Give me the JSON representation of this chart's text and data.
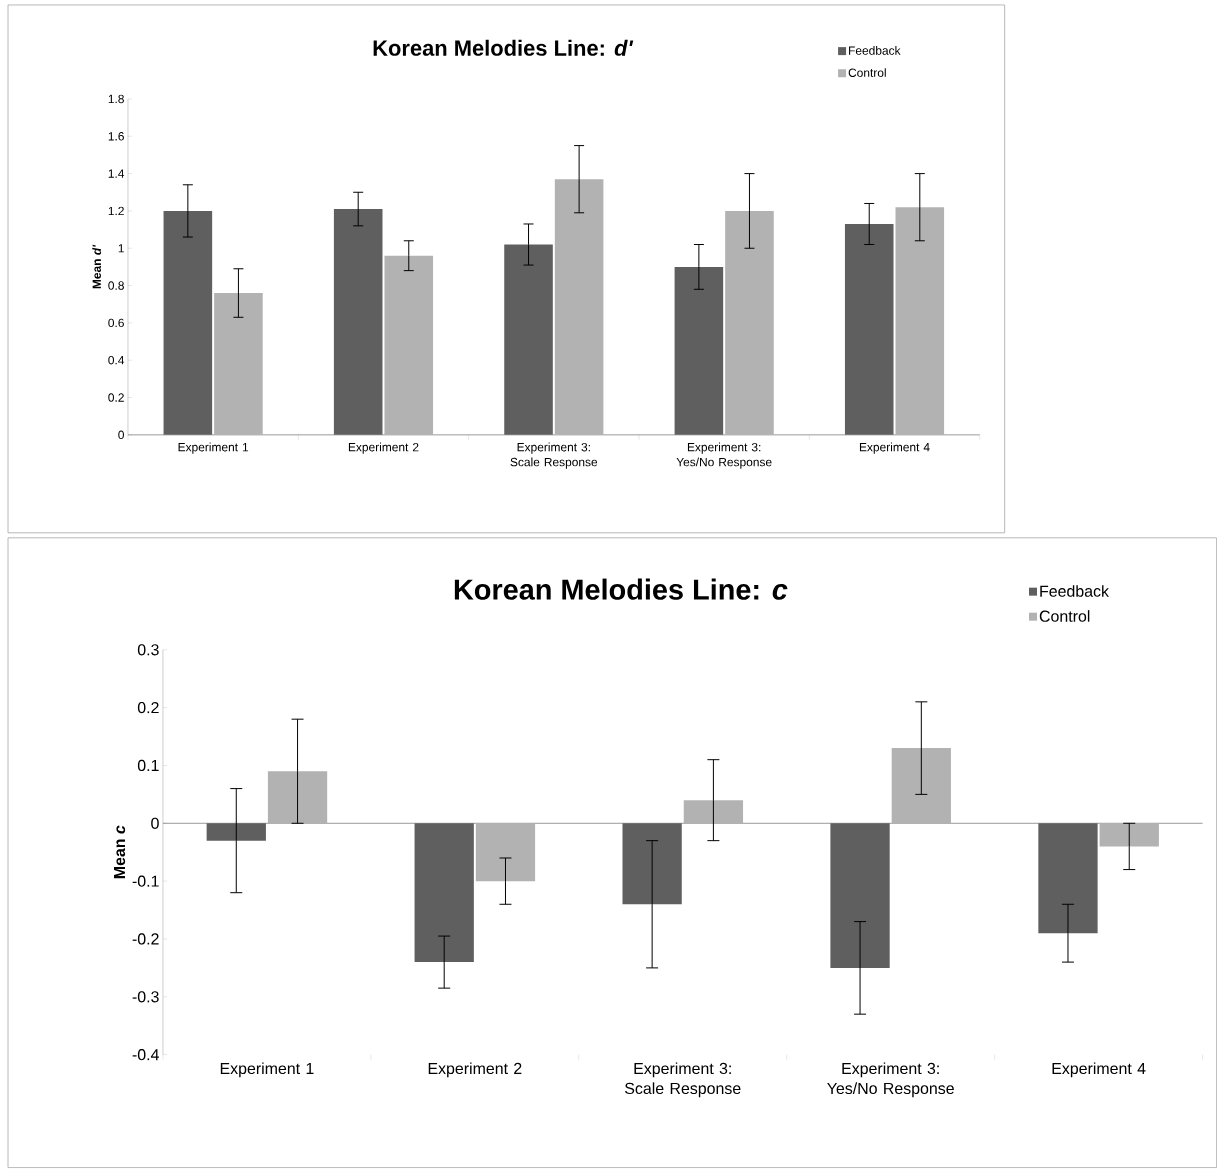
{
  "chart_data": [
    {
      "type": "bar",
      "title": "Korean Melodies Line: *d'*",
      "ylabel": "Mean *d'*",
      "categories": [
        "Experiment 1",
        "Experiment 2",
        "Experiment 3: Scale Response",
        "Experiment 3: Yes/No Response",
        "Experiment 4"
      ],
      "series": [
        {
          "name": "Feedback",
          "color": "#5f5f5f",
          "values": [
            1.2,
            1.21,
            1.02,
            0.9,
            1.13
          ],
          "errors": [
            0.14,
            0.09,
            0.11,
            0.12,
            0.11
          ]
        },
        {
          "name": "Control",
          "color": "#b2b2b2",
          "values": [
            0.76,
            0.96,
            1.37,
            1.2,
            1.22
          ],
          "errors": [
            0.13,
            0.08,
            0.18,
            0.2,
            0.18
          ]
        }
      ],
      "ylim": [
        0,
        1.8
      ],
      "yticks": [
        0,
        0.2,
        0.4,
        0.6,
        0.8,
        1,
        1.2,
        1.4,
        1.6,
        1.8
      ],
      "legend": "top right"
    },
    {
      "type": "bar",
      "title": "Korean Melodies Line: *c*",
      "ylabel": "Mean *c*",
      "categories": [
        "Experiment 1",
        "Experiment 2",
        "Experiment 3: Scale Response",
        "Experiment 3: Yes/No Response",
        "Experiment 4"
      ],
      "series": [
        {
          "name": "Feedback",
          "color": "#5f5f5f",
          "values": [
            -0.03,
            -0.24,
            -0.14,
            -0.25,
            -0.19
          ],
          "errors": [
            0.09,
            0.045,
            0.11,
            0.08,
            0.05
          ]
        },
        {
          "name": "Control",
          "color": "#b2b2b2",
          "values": [
            0.09,
            -0.1,
            0.04,
            0.13,
            -0.04
          ],
          "errors": [
            0.09,
            0.04,
            0.07,
            0.08,
            0.04
          ]
        }
      ],
      "ylim": [
        -0.4,
        0.3
      ],
      "yticks": [
        -0.4,
        -0.3,
        -0.2,
        -0.1,
        0,
        0.1,
        0.2,
        0.3
      ],
      "legend": "top right"
    }
  ]
}
